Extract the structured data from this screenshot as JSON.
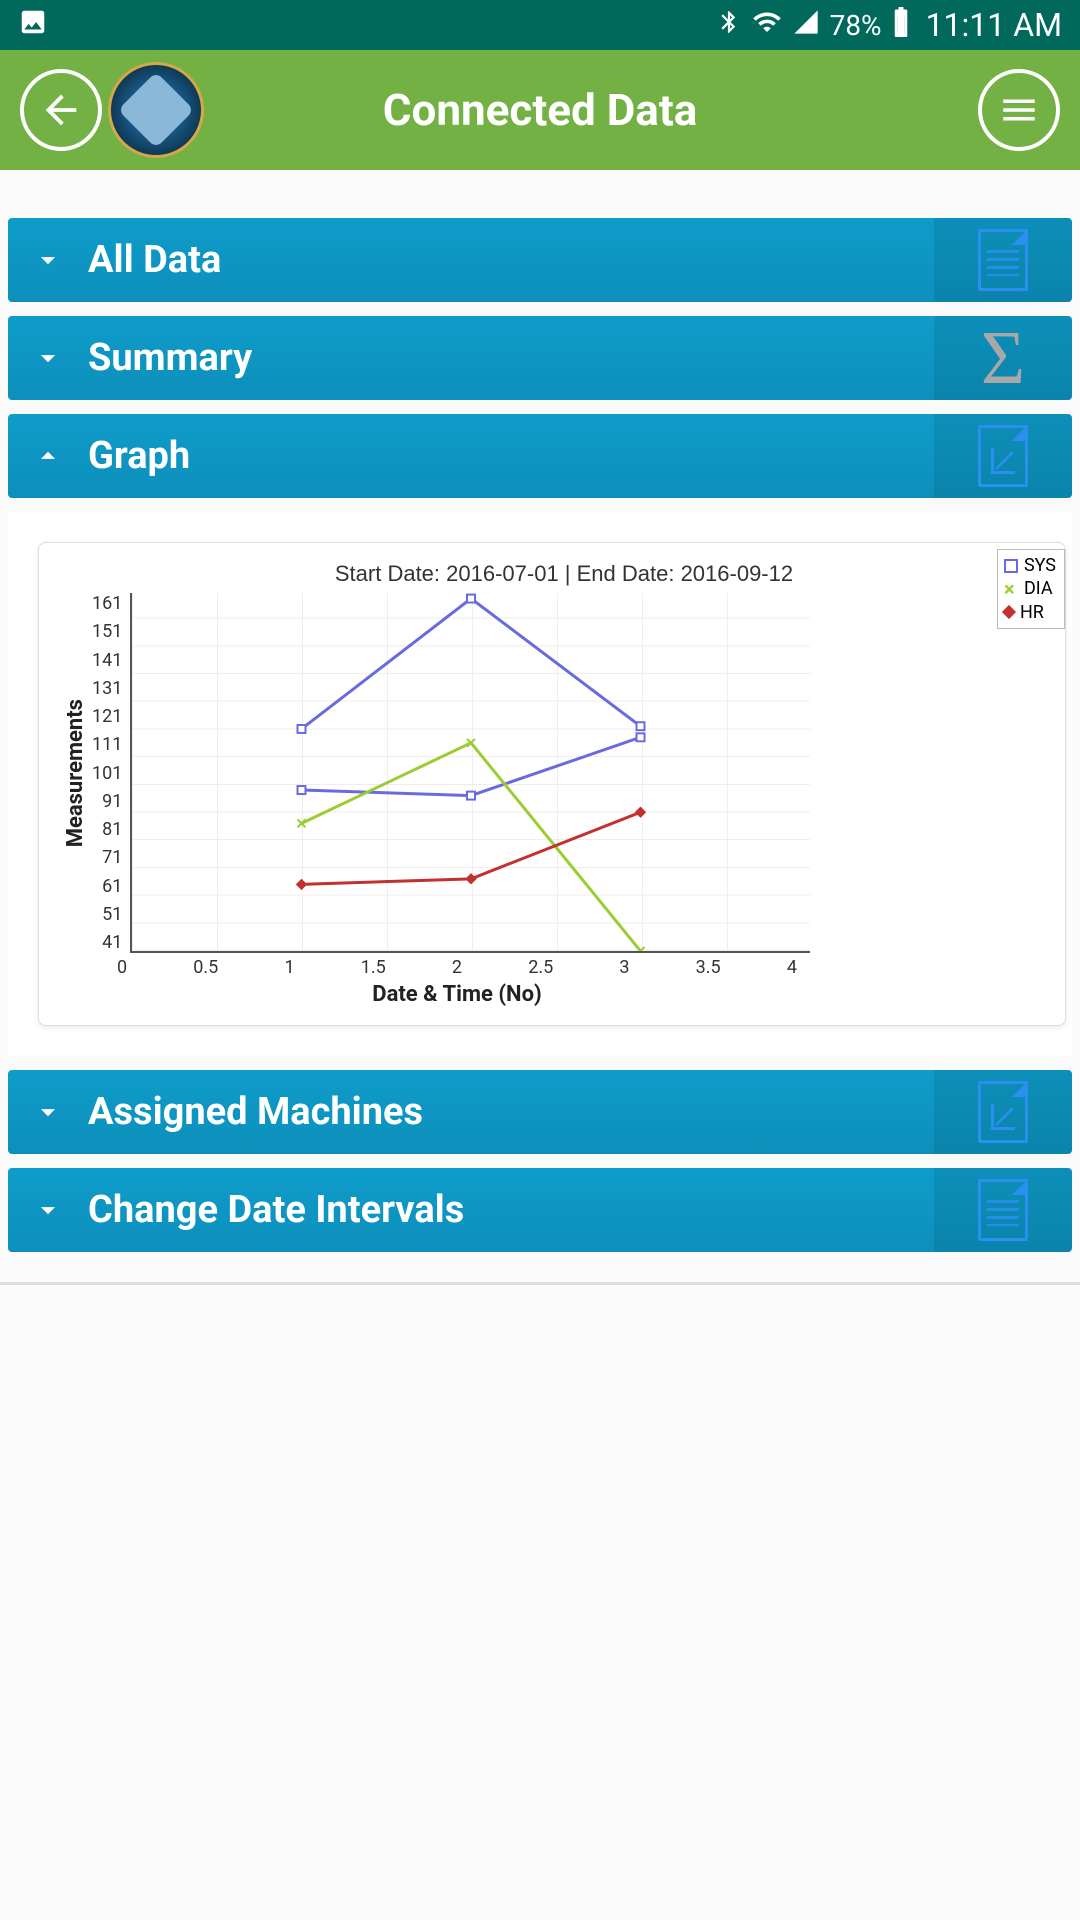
{
  "status_bar": {
    "battery_pct": "78%",
    "time": "11:11 AM"
  },
  "app_bar": {
    "title": "Connected Data"
  },
  "panels": {
    "all_data": {
      "label": "All Data",
      "expanded": false
    },
    "summary": {
      "label": "Summary",
      "expanded": false
    },
    "graph": {
      "label": "Graph",
      "expanded": true
    },
    "machines": {
      "label": "Assigned Machines",
      "expanded": false
    },
    "intervals": {
      "label": "Change Date Intervals",
      "expanded": false
    }
  },
  "chart": {
    "type": "line",
    "title": "Start Date: 2016-07-01 | End Date: 2016-09-12",
    "xlabel": "Date & Time (No)",
    "ylabel": "Measurements",
    "xlim": [
      0,
      4
    ],
    "ylim": [
      41,
      170
    ],
    "xticks": [
      0,
      0.5,
      1,
      1.5,
      2,
      2.5,
      3,
      3.5,
      4
    ],
    "yticks": [
      161,
      151,
      141,
      131,
      121,
      111,
      101,
      91,
      81,
      71,
      61,
      51,
      41
    ],
    "background_color": "#ffffff",
    "grid_color": "#eeeeee",
    "axis_color": "#555555",
    "title_fontsize": 22,
    "label_fontsize": 22,
    "tick_fontsize": 18,
    "line_width": 3,
    "marker_size": 8,
    "series": [
      {
        "name": "SYS",
        "color": "#6a6ae0",
        "marker": "square-open",
        "x": [
          1,
          2,
          3,
          1,
          2,
          3
        ],
        "y": [
          121,
          168,
          122,
          99,
          97,
          118
        ]
      },
      {
        "name": "DIA",
        "color": "#9acd32",
        "marker": "x",
        "x": [
          1,
          2,
          3
        ],
        "y": [
          87,
          116,
          41
        ]
      },
      {
        "name": "HR",
        "color": "#c23030",
        "marker": "diamond",
        "x": [
          1,
          2,
          3
        ],
        "y": [
          65,
          67,
          91
        ]
      }
    ],
    "legend": {
      "position": "top-right",
      "border_color": "#bbbbbb",
      "items": [
        {
          "label": "SYS",
          "color": "#6a6ae0",
          "marker": "square-open"
        },
        {
          "label": "DIA",
          "color": "#9acd32",
          "marker": "x"
        },
        {
          "label": "HR",
          "color": "#c23030",
          "marker": "diamond"
        }
      ]
    }
  }
}
